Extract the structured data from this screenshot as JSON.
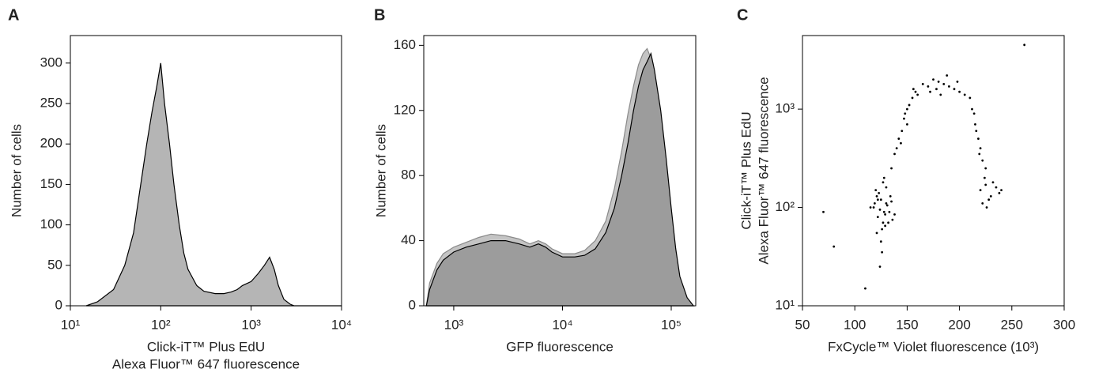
{
  "chart_data": [
    {
      "type": "area",
      "panel": "A",
      "xscale": "log",
      "yscale": "linear",
      "ylabel": [
        "Number of cells"
      ],
      "xlabel": [
        "Click-iT™ Plus EdU",
        "Alexa Fluor™ 647 fluorescence"
      ],
      "xlim": [
        10,
        10000
      ],
      "ylim": [
        0,
        334
      ],
      "xticks": [
        {
          "value": 10,
          "label": "10¹"
        },
        {
          "value": 100,
          "label": "10²"
        },
        {
          "value": 1000,
          "label": "10³"
        },
        {
          "value": 10000,
          "label": "10⁴"
        }
      ],
      "yticks": [
        0,
        50,
        100,
        150,
        200,
        250,
        300
      ],
      "x": [
        15,
        20,
        30,
        40,
        50,
        60,
        70,
        80,
        90,
        100,
        110,
        125,
        140,
        160,
        180,
        200,
        250,
        300,
        400,
        500,
        600,
        700,
        800,
        1000,
        1200,
        1400,
        1600,
        1800,
        2000,
        2300,
        2700,
        3000,
        10000
      ],
      "series": [
        {
          "color": "#b5b5b5",
          "line_color": "#000000",
          "values": [
            0,
            5,
            20,
            50,
            90,
            150,
            200,
            240,
            270,
            300,
            250,
            200,
            150,
            100,
            65,
            45,
            25,
            18,
            15,
            15,
            17,
            20,
            25,
            30,
            40,
            50,
            60,
            45,
            25,
            8,
            2,
            0,
            0
          ]
        }
      ]
    },
    {
      "type": "area",
      "panel": "B",
      "xscale": "log",
      "yscale": "linear",
      "ylabel": [
        "Number of cells"
      ],
      "xlabel": [
        "GFP fluorescence"
      ],
      "xlim": [
        530,
        168000
      ],
      "ylim": [
        0,
        166
      ],
      "xticks": [
        {
          "value": 1000,
          "label": "10³"
        },
        {
          "value": 10000,
          "label": "10⁴"
        },
        {
          "value": 100000,
          "label": "10⁵"
        }
      ],
      "yticks": [
        0,
        40,
        80,
        120,
        160
      ],
      "x": [
        560,
        600,
        700,
        800,
        1000,
        1300,
        1700,
        2200,
        3000,
        4000,
        5000,
        6000,
        7000,
        8000,
        10000,
        13000,
        16000,
        20000,
        25000,
        30000,
        35000,
        40000,
        45000,
        50000,
        55000,
        60000,
        65000,
        70000,
        80000,
        90000,
        100000,
        110000,
        120000,
        140000,
        160000
      ],
      "series": [
        {
          "color": "#c4c4c4",
          "line_color": "#8a8a8a",
          "values": [
            0,
            14,
            26,
            32,
            36,
            39,
            42,
            44,
            43,
            41,
            38,
            40,
            38,
            35,
            32,
            32,
            34,
            40,
            52,
            72,
            95,
            118,
            135,
            148,
            155,
            158,
            152,
            135,
            105,
            75,
            45,
            25,
            10,
            3,
            0
          ]
        },
        {
          "color": "#9c9c9c",
          "line_color": "#000000",
          "values": [
            0,
            10,
            22,
            28,
            33,
            36,
            38,
            40,
            40,
            38,
            36,
            38,
            36,
            33,
            30,
            30,
            31,
            35,
            45,
            60,
            80,
            100,
            120,
            135,
            145,
            150,
            155,
            145,
            120,
            90,
            60,
            35,
            18,
            5,
            0
          ]
        }
      ]
    },
    {
      "type": "scatter",
      "panel": "C",
      "xscale": "linear",
      "yscale": "log",
      "ylabel": [
        "Click-iT™ Plus EdU",
        "Alexa Fluor™ 647 fluorescence"
      ],
      "xlabel": [
        "FxCycle™ Violet fluorescence (10³)"
      ],
      "xlim": [
        50,
        300
      ],
      "ylim": [
        10,
        5600
      ],
      "xticks": [
        50,
        100,
        150,
        200,
        250,
        300
      ],
      "yticks": [
        {
          "value": 10,
          "label": "10¹"
        },
        {
          "value": 100,
          "label": "10²"
        },
        {
          "value": 1000,
          "label": "10³"
        }
      ],
      "color": "#000000",
      "x": [
        118,
        122,
        125,
        128,
        130,
        132,
        120,
        126,
        134,
        124,
        127,
        129,
        131,
        136,
        121,
        123,
        119,
        133,
        128,
        125,
        138,
        115,
        126,
        130,
        122,
        127,
        124,
        135,
        129,
        121,
        135,
        140,
        145,
        148,
        150,
        155,
        158,
        160,
        150,
        142,
        138,
        152,
        147,
        144,
        156,
        165,
        170,
        175,
        178,
        180,
        185,
        190,
        195,
        200,
        205,
        210,
        188,
        172,
        198,
        182,
        212,
        215,
        218,
        220,
        222,
        216,
        225,
        214,
        219,
        224,
        220,
        225,
        230,
        235,
        228,
        232,
        238,
        222,
        240,
        226,
        262,
        70,
        80,
        110
      ],
      "values": [
        100,
        80,
        120,
        90,
        110,
        70,
        150,
        60,
        130,
        95,
        180,
        85,
        105,
        75,
        55,
        140,
        110,
        90,
        200,
        45,
        85,
        100,
        35,
        160,
        120,
        70,
        25,
        115,
        65,
        130,
        250,
        400,
        600,
        900,
        1000,
        1300,
        1500,
        1400,
        700,
        500,
        350,
        1100,
        800,
        450,
        1600,
        1800,
        1700,
        2000,
        1600,
        1900,
        1800,
        1700,
        1600,
        1500,
        1400,
        1300,
        2200,
        1500,
        1900,
        1400,
        1000,
        700,
        500,
        400,
        300,
        600,
        250,
        900,
        350,
        200,
        150,
        170,
        130,
        160,
        120,
        180,
        140,
        110,
        150,
        100,
        4500,
        90,
        40,
        15
      ]
    }
  ]
}
